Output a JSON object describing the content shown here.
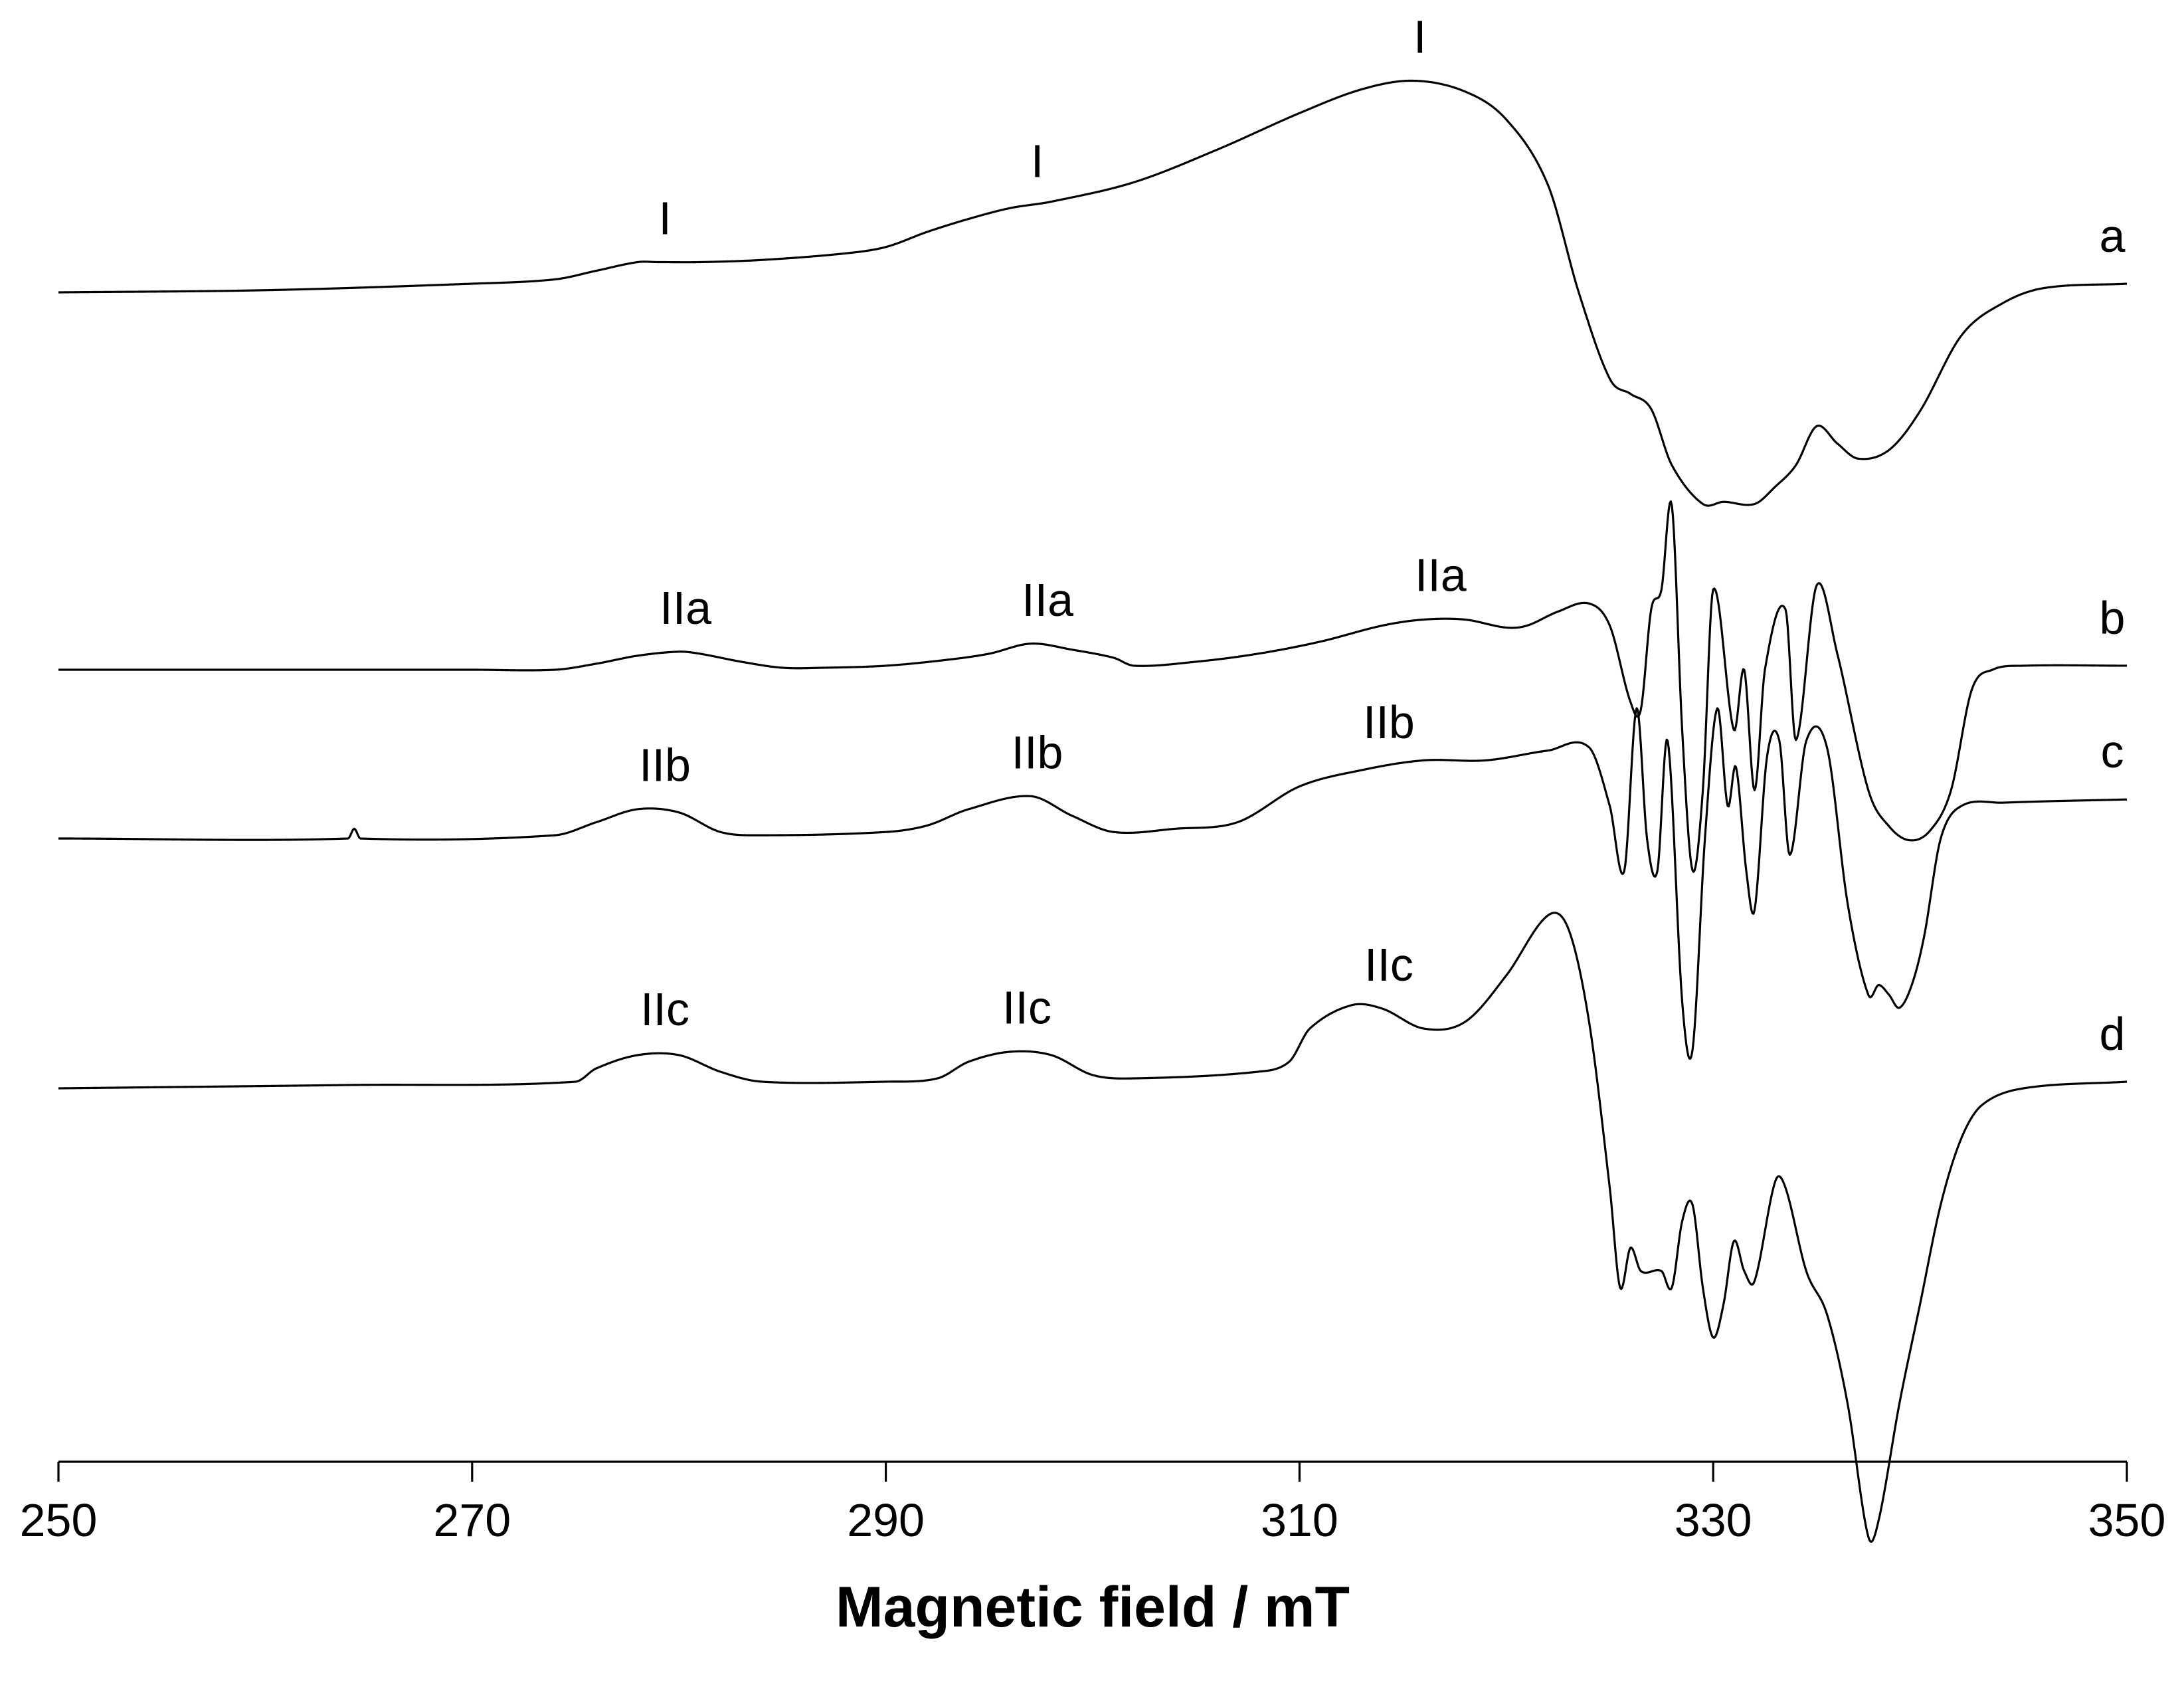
{
  "chart_data": {
    "type": "line",
    "title": "",
    "xlabel": "Magnetic field / mT",
    "ylabel": "",
    "xlim": [
      250,
      350
    ],
    "x_ticks": [
      250,
      270,
      290,
      310,
      330,
      350
    ],
    "x_tick_labels": [
      "250",
      "270",
      "290",
      "310",
      "330",
      "350"
    ],
    "y_axis_shown": false,
    "grid": false,
    "legend": "none",
    "stacking": "vertical offset, spectra labelled at right end",
    "series": [
      {
        "name": "a",
        "points": [
          [
            250,
            0.0
          ],
          [
            260,
            0.01
          ],
          [
            270,
            0.04
          ],
          [
            274,
            0.06
          ],
          [
            276,
            0.1
          ],
          [
            278,
            0.14
          ],
          [
            279,
            0.14
          ],
          [
            281,
            0.14
          ],
          [
            284,
            0.15
          ],
          [
            288,
            0.18
          ],
          [
            290,
            0.21
          ],
          [
            292,
            0.28
          ],
          [
            294,
            0.34
          ],
          [
            296,
            0.39
          ],
          [
            298,
            0.42
          ],
          [
            302,
            0.51
          ],
          [
            306,
            0.66
          ],
          [
            310,
            0.83
          ],
          [
            313,
            0.94
          ],
          [
            315.5,
            0.98
          ],
          [
            318,
            0.93
          ],
          [
            320,
            0.8
          ],
          [
            322,
            0.5
          ],
          [
            323.5,
            0.0
          ],
          [
            325,
            -0.4
          ],
          [
            326,
            -0.47
          ],
          [
            327,
            -0.54
          ],
          [
            328,
            -0.8
          ],
          [
            329.5,
            -0.98
          ],
          [
            330.5,
            -0.97
          ],
          [
            332,
            -0.98
          ],
          [
            333,
            -0.9
          ],
          [
            334,
            -0.8
          ],
          [
            335,
            -0.62
          ],
          [
            336,
            -0.7
          ],
          [
            337,
            -0.77
          ],
          [
            338.5,
            -0.73
          ],
          [
            340,
            -0.55
          ],
          [
            342,
            -0.2
          ],
          [
            344,
            -0.05
          ],
          [
            346,
            0.02
          ],
          [
            350,
            0.04
          ]
        ],
        "markers": [
          {
            "x": 279,
            "label": "I"
          },
          {
            "x": 297,
            "label": "I"
          },
          {
            "x": 315.5,
            "label": "I"
          }
        ]
      },
      {
        "name": "b",
        "points": [
          [
            250,
            0.0
          ],
          [
            270,
            0.0
          ],
          [
            274,
            0.0
          ],
          [
            276,
            0.03
          ],
          [
            278,
            0.07
          ],
          [
            280,
            0.09
          ],
          [
            281,
            0.08
          ],
          [
            283,
            0.04
          ],
          [
            285,
            0.01
          ],
          [
            287,
            0.01
          ],
          [
            290,
            0.02
          ],
          [
            293,
            0.05
          ],
          [
            295,
            0.08
          ],
          [
            297,
            0.13
          ],
          [
            299,
            0.1
          ],
          [
            301,
            0.06
          ],
          [
            302,
            0.02
          ],
          [
            305,
            0.04
          ],
          [
            308,
            0.08
          ],
          [
            311,
            0.14
          ],
          [
            314,
            0.22
          ],
          [
            316,
            0.25
          ],
          [
            318,
            0.25
          ],
          [
            320,
            0.21
          ],
          [
            321,
            0.22
          ],
          [
            322.5,
            0.29
          ],
          [
            324,
            0.33
          ],
          [
            325,
            0.22
          ],
          [
            326,
            -0.16
          ],
          [
            326.5,
            -0.2
          ],
          [
            327,
            0.3
          ],
          [
            327.5,
            0.4
          ],
          [
            328,
            0.82
          ],
          [
            328.5,
            -0.3
          ],
          [
            329,
            -1.0
          ],
          [
            329.5,
            -0.6
          ],
          [
            330,
            0.4
          ],
          [
            331,
            -0.3
          ],
          [
            331.5,
            0.0
          ],
          [
            332,
            -0.6
          ],
          [
            332.5,
            0.0
          ],
          [
            333.5,
            0.3
          ],
          [
            334,
            -0.35
          ],
          [
            335,
            0.42
          ],
          [
            336,
            0.08
          ],
          [
            337.5,
            -0.6
          ],
          [
            338.5,
            -0.78
          ],
          [
            339.5,
            -0.85
          ],
          [
            340.5,
            -0.8
          ],
          [
            341.5,
            -0.6
          ],
          [
            342.5,
            -0.1
          ],
          [
            343.5,
            0.0
          ],
          [
            345,
            0.02
          ],
          [
            350,
            0.02
          ]
        ],
        "markers": [
          {
            "x": 280,
            "label": "IIa"
          },
          {
            "x": 297.5,
            "label": "IIa"
          },
          {
            "x": 316.5,
            "label": "IIa"
          }
        ]
      },
      {
        "name": "c",
        "points": [
          [
            250,
            0.0
          ],
          [
            264,
            0.0
          ],
          [
            264.3,
            0.03
          ],
          [
            264.6,
            0.0
          ],
          [
            274,
            0.01
          ],
          [
            276,
            0.05
          ],
          [
            278,
            0.09
          ],
          [
            280,
            0.08
          ],
          [
            282,
            0.02
          ],
          [
            284,
            0.01
          ],
          [
            290,
            0.02
          ],
          [
            292,
            0.04
          ],
          [
            294,
            0.09
          ],
          [
            297,
            0.13
          ],
          [
            299,
            0.07
          ],
          [
            301,
            0.02
          ],
          [
            304,
            0.03
          ],
          [
            307,
            0.05
          ],
          [
            310,
            0.16
          ],
          [
            313,
            0.21
          ],
          [
            316,
            0.24
          ],
          [
            319,
            0.24
          ],
          [
            322,
            0.27
          ],
          [
            324,
            0.28
          ],
          [
            325,
            0.1
          ],
          [
            325.7,
            -0.1
          ],
          [
            326.3,
            0.4
          ],
          [
            326.8,
            0.0
          ],
          [
            327.3,
            -0.1
          ],
          [
            327.8,
            0.3
          ],
          [
            328.5,
            -0.5
          ],
          [
            329,
            -0.65
          ],
          [
            329.6,
            0.0
          ],
          [
            330.2,
            0.4
          ],
          [
            330.7,
            0.1
          ],
          [
            331.1,
            0.22
          ],
          [
            331.6,
            -0.1
          ],
          [
            332,
            -0.22
          ],
          [
            332.6,
            0.25
          ],
          [
            333.2,
            0.3
          ],
          [
            333.7,
            -0.05
          ],
          [
            334.5,
            0.3
          ],
          [
            335.5,
            0.28
          ],
          [
            336.5,
            -0.2
          ],
          [
            337.5,
            -0.48
          ],
          [
            338,
            -0.45
          ],
          [
            338.5,
            -0.48
          ],
          [
            339,
            -0.52
          ],
          [
            339.6,
            -0.45
          ],
          [
            340.2,
            -0.3
          ],
          [
            341,
            0.0
          ],
          [
            342,
            0.1
          ],
          [
            344,
            0.11
          ],
          [
            350,
            0.12
          ]
        ],
        "markers": [
          {
            "x": 279,
            "label": "IIb"
          },
          {
            "x": 297,
            "label": "IIb"
          },
          {
            "x": 314,
            "label": "IIb"
          }
        ]
      },
      {
        "name": "d",
        "points": [
          [
            250,
            0.0
          ],
          [
            264,
            0.01
          ],
          [
            275,
            0.02
          ],
          [
            276,
            0.06
          ],
          [
            278,
            0.1
          ],
          [
            280,
            0.1
          ],
          [
            282,
            0.05
          ],
          [
            284,
            0.02
          ],
          [
            290,
            0.02
          ],
          [
            292.5,
            0.03
          ],
          [
            294,
            0.08
          ],
          [
            296,
            0.11
          ],
          [
            298,
            0.1
          ],
          [
            300,
            0.04
          ],
          [
            302,
            0.03
          ],
          [
            308,
            0.05
          ],
          [
            309.5,
            0.08
          ],
          [
            310.5,
            0.18
          ],
          [
            312.5,
            0.25
          ],
          [
            314,
            0.24
          ],
          [
            316,
            0.18
          ],
          [
            318,
            0.2
          ],
          [
            320,
            0.34
          ],
          [
            322,
            0.52
          ],
          [
            323,
            0.48
          ],
          [
            324,
            0.2
          ],
          [
            325,
            -0.3
          ],
          [
            325.5,
            -0.6
          ],
          [
            326,
            -0.48
          ],
          [
            326.5,
            -0.55
          ],
          [
            327.5,
            -0.55
          ],
          [
            328,
            -0.6
          ],
          [
            328.5,
            -0.4
          ],
          [
            329,
            -0.35
          ],
          [
            329.5,
            -0.6
          ],
          [
            330,
            -0.75
          ],
          [
            330.5,
            -0.65
          ],
          [
            331,
            -0.46
          ],
          [
            331.5,
            -0.55
          ],
          [
            332,
            -0.58
          ],
          [
            333,
            -0.28
          ],
          [
            333.5,
            -0.3
          ],
          [
            334.5,
            -0.55
          ],
          [
            335.5,
            -0.68
          ],
          [
            336.5,
            -0.95
          ],
          [
            337.5,
            -1.35
          ],
          [
            338,
            -1.3
          ],
          [
            339,
            -0.95
          ],
          [
            340,
            -0.65
          ],
          [
            341,
            -0.35
          ],
          [
            342,
            -0.15
          ],
          [
            343,
            -0.05
          ],
          [
            345,
            0.0
          ],
          [
            350,
            0.02
          ]
        ],
        "markers": [
          {
            "x": 279,
            "label": "IIc"
          },
          {
            "x": 296.5,
            "label": "IIc"
          },
          {
            "x": 314,
            "label": "IIc"
          }
        ]
      }
    ]
  }
}
